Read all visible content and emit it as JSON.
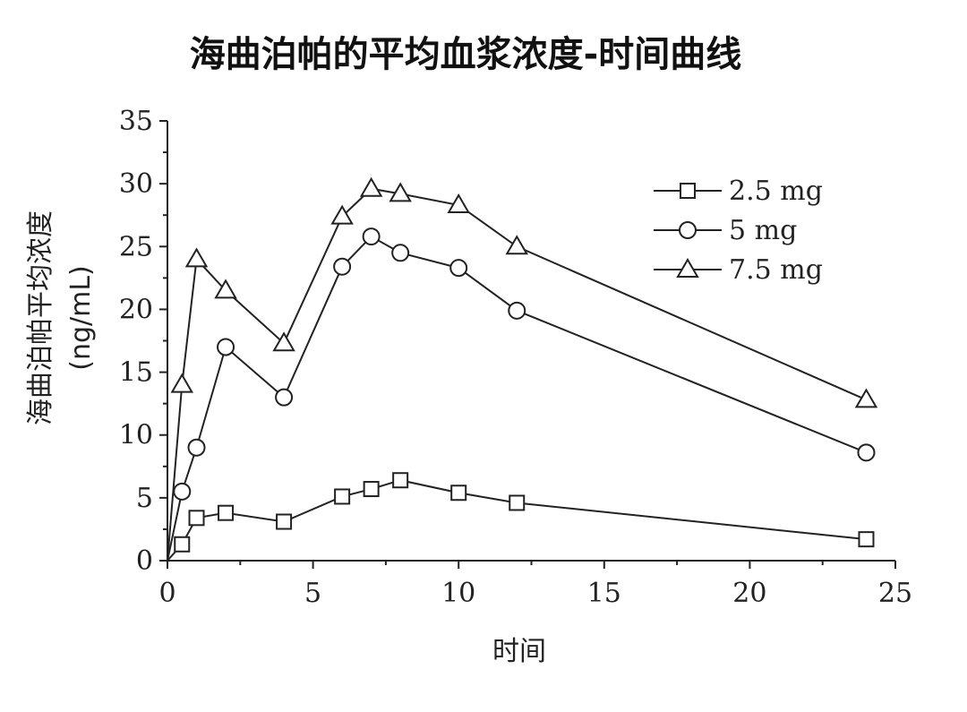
{
  "chart_data": {
    "type": "line",
    "title": "海曲泊帕的平均血浆浓度-时间曲线",
    "xlabel": "时间",
    "ylabel_line1": "海曲泊帕平均浓度",
    "ylabel_line2": "(ng/mL)",
    "xlim": [
      0,
      25
    ],
    "ylim": [
      0,
      35
    ],
    "xticks": [
      0,
      5,
      10,
      15,
      20,
      25
    ],
    "yticks": [
      0,
      5,
      10,
      15,
      20,
      25,
      30,
      35
    ],
    "grid": false,
    "legend_position": "top-right",
    "series": [
      {
        "name": "2.5 mg",
        "marker": "square",
        "x": [
          0,
          0.5,
          1,
          2,
          4,
          6,
          7,
          8,
          10,
          12,
          24
        ],
        "y": [
          0,
          1.3,
          3.4,
          3.8,
          3.1,
          5.1,
          5.7,
          6.4,
          5.4,
          4.6,
          1.7
        ]
      },
      {
        "name": "5 mg",
        "marker": "circle",
        "x": [
          0,
          0.5,
          1,
          2,
          4,
          6,
          7,
          8,
          10,
          12,
          24
        ],
        "y": [
          0,
          5.5,
          9.0,
          17.0,
          13.0,
          23.4,
          25.8,
          24.5,
          23.3,
          19.9,
          8.6
        ]
      },
      {
        "name": "7.5 mg",
        "marker": "triangle",
        "x": [
          0,
          0.5,
          1,
          2,
          4,
          6,
          7,
          8,
          10,
          12,
          24
        ],
        "y": [
          0,
          14.0,
          24.0,
          21.5,
          17.3,
          27.4,
          29.6,
          29.2,
          28.3,
          25.0,
          12.8
        ]
      }
    ]
  }
}
